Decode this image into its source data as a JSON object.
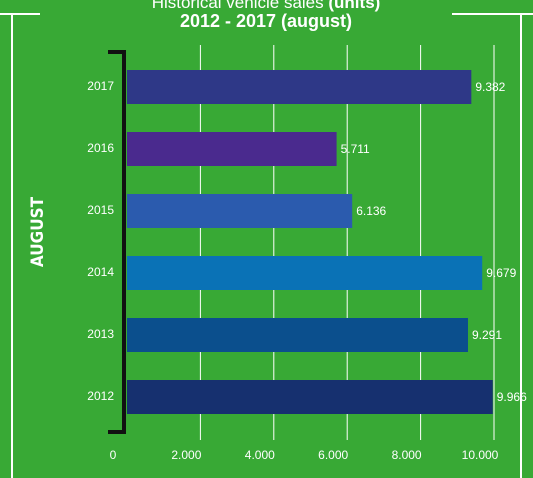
{
  "chart_data": {
    "type": "bar",
    "orientation": "horizontal",
    "title": "Historical vehicle sales",
    "title_bold": "(units)",
    "subtitle": "2012 - 2017 (august)",
    "y_label": "AUGUST",
    "categories": [
      "2017",
      "2016",
      "2015",
      "2014",
      "2013",
      "2012"
    ],
    "values": [
      9382,
      5711,
      6136,
      9679,
      9291,
      9966
    ],
    "value_labels": [
      "9.382",
      "5.711",
      "6.136",
      "9.679",
      "9.291",
      "9.966"
    ],
    "colors": [
      "#2e3887",
      "#4a2a8e",
      "#2b5bae",
      "#0a72b6",
      "#0b4f8d",
      "#16306f"
    ],
    "xlim": [
      0,
      10000
    ],
    "xticks": [
      0,
      {
        "value": 2000,
        "label": "2.000"
      },
      {
        "value": 4000,
        "label": "4.000"
      },
      {
        "value": 6000,
        "label": "6.000"
      },
      {
        "value": 8000,
        "label": "8.000"
      },
      {
        "value": 10000,
        "label": "10.000"
      }
    ],
    "grid": true
  }
}
